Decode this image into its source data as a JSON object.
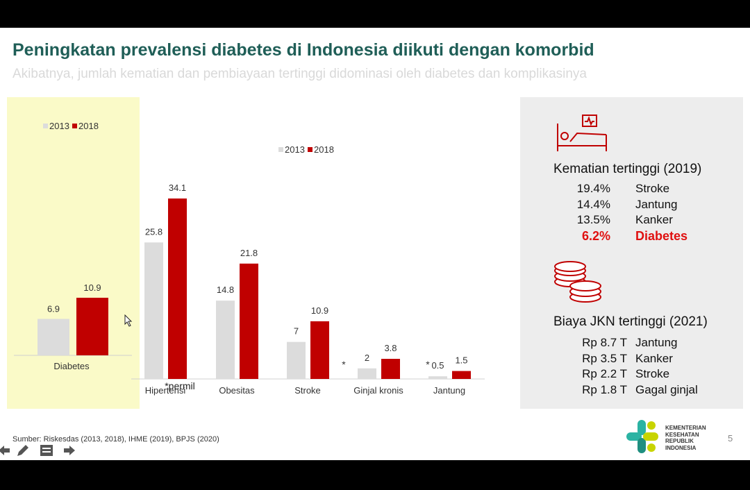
{
  "slide": {
    "title": "Peningkatan prevalensi diabetes di Indonesia diikuti dengan komorbid",
    "subtitle": "Akibatnya, jumlah kematian dan pembiayaan tertinggi didominasi oleh diabetes dan komplikasinya",
    "source": "Sumber: Riskesdas (2013, 2018), IHME (2019), BPJS (2020)",
    "page_number": "5",
    "note_permil": "*permil",
    "asterisk": "*"
  },
  "colors": {
    "y2013": "#dcdcdc",
    "y2018": "#c00000",
    "title": "#1f5e57",
    "highlight": "#e01010"
  },
  "chart_data": [
    {
      "type": "bar",
      "categories": [
        "Diabetes"
      ],
      "series": [
        {
          "name": "2013",
          "values": [
            6.9
          ]
        },
        {
          "name": "2018",
          "values": [
            10.9
          ]
        }
      ],
      "legend": "top"
    },
    {
      "type": "bar",
      "categories": [
        "Hipertensi",
        "Obesitas",
        "Stroke",
        "Ginjal kronis",
        "Jantung"
      ],
      "series": [
        {
          "name": "2013",
          "values": [
            25.8,
            14.8,
            7,
            2,
            0.5
          ]
        },
        {
          "name": "2018",
          "values": [
            34.1,
            21.8,
            10.9,
            3.8,
            1.5
          ]
        }
      ],
      "legend": "top"
    }
  ],
  "deaths": {
    "heading": "Kematian tertinggi (2019)",
    "icon": "hospital-bed-icon",
    "rows": [
      {
        "value": "19.4%",
        "label": "Stroke"
      },
      {
        "value": "14.4%",
        "label": "Jantung"
      },
      {
        "value": "13.5%",
        "label": "Kanker"
      },
      {
        "value": "6.2%",
        "label": "Diabetes"
      }
    ]
  },
  "costs": {
    "heading": "Biaya JKN tertinggi (2021)",
    "icon": "coins-icon",
    "rows": [
      {
        "value": "Rp 8.7 T",
        "label": "Jantung"
      },
      {
        "value": "Rp 3.5 T",
        "label": "Kanker"
      },
      {
        "value": "Rp 2.2 T",
        "label": "Stroke"
      },
      {
        "value": "Rp 1.8 T",
        "label": "Gagal ginjal"
      }
    ]
  },
  "logo": {
    "lines": [
      "KEMENTERIAN",
      "KESEHATAN",
      "REPUBLIK",
      "INDONESIA"
    ]
  },
  "toolbar": {
    "icons": [
      "previous-slide-icon",
      "pen-icon",
      "slides-menu-icon",
      "next-slide-icon"
    ]
  }
}
